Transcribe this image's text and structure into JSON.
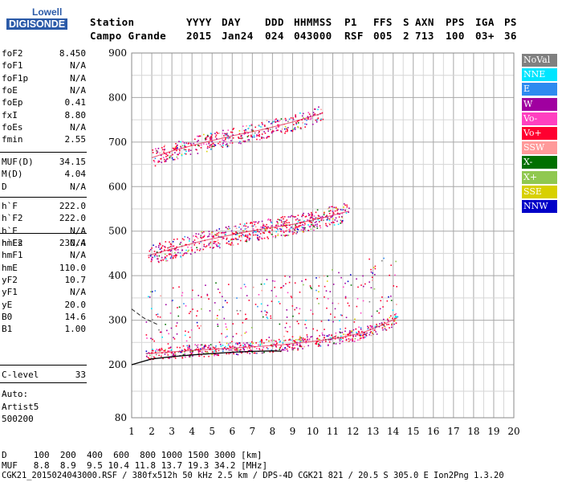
{
  "logo": {
    "top": "Lowell",
    "bottom": "DIGISONDE"
  },
  "header": {
    "row1": [
      "Station",
      "YYYY",
      "DAY",
      "DDD",
      "HHMMSS",
      "P1",
      "FFS",
      "S",
      "AXN",
      "PPS",
      "IGA",
      "PS"
    ],
    "row2": [
      "Campo Grande",
      "2015",
      "Jan24",
      "024",
      "043000",
      "RSF",
      "005",
      "2",
      "713",
      "100",
      "03+",
      "36"
    ]
  },
  "params": {
    "g1": [
      {
        "k": "foF2",
        "v": "8.450"
      },
      {
        "k": "foF1",
        "v": "N/A"
      },
      {
        "k": "foF1p",
        "v": "N/A"
      },
      {
        "k": "foE",
        "v": "N/A"
      },
      {
        "k": "foEp",
        "v": "0.41"
      },
      {
        "k": "fxI",
        "v": "8.80"
      },
      {
        "k": "foEs",
        "v": "N/A"
      },
      {
        "k": "fmin",
        "v": "2.55"
      }
    ],
    "g2": [
      {
        "k": "MUF(D)",
        "v": "34.15"
      },
      {
        "k": "M(D)",
        "v": "4.04"
      },
      {
        "k": "D",
        "v": "N/A"
      }
    ],
    "g3": [
      {
        "k": "h`F",
        "v": "222.0"
      },
      {
        "k": "h`F2",
        "v": "222.0"
      },
      {
        "k": "h`E",
        "v": "N/A"
      },
      {
        "k": "h`Es",
        "v": "N/A"
      }
    ],
    "g4": [
      {
        "k": "hmF2",
        "v": "230.4"
      },
      {
        "k": "hmF1",
        "v": "N/A"
      },
      {
        "k": "hmE",
        "v": "110.0"
      },
      {
        "k": "yF2",
        "v": "10.7"
      },
      {
        "k": "yF1",
        "v": "N/A"
      },
      {
        "k": "yE",
        "v": "20.0"
      },
      {
        "k": "B0",
        "v": "14.6"
      },
      {
        "k": "B1",
        "v": "1.00"
      }
    ],
    "g5": [
      {
        "k": "C-level",
        "v": "33"
      }
    ],
    "auto": [
      "Auto:",
      "Artist5",
      "500200"
    ]
  },
  "legend": [
    {
      "label": "NoVal",
      "color": "#808080"
    },
    {
      "label": "NNE",
      "color": "#00e5ff"
    },
    {
      "label": "E",
      "color": "#2e8bf0"
    },
    {
      "label": "W",
      "color": "#a000a0"
    },
    {
      "label": "Vo-",
      "color": "#ff40c0"
    },
    {
      "label": "Vo+",
      "color": "#ff0030"
    },
    {
      "label": "SSW",
      "color": "#ff9a9a"
    },
    {
      "label": "X-",
      "color": "#007000"
    },
    {
      "label": "X+",
      "color": "#90c850"
    },
    {
      "label": "SSE",
      "color": "#d8d000"
    },
    {
      "label": "NNW",
      "color": "#0000c8"
    }
  ],
  "footer": {
    "row1": "D     100  200  400  600  800 1000 1500 3000 [km]",
    "row2": "MUF   8.8  8.9  9.5 10.4 11.8 13.7 19.3 34.2 [MHz]",
    "row3": "CGK21_2015024043000.RSF / 380fx512h 50 kHz 2.5 km / DPS-4D CGK21 821 / 20.5 S 305.0 E Ion2Png 1.3.20"
  },
  "chart_data": {
    "type": "scatter",
    "title": "",
    "xlabel": "",
    "ylabel": "",
    "xlim": [
      1,
      20
    ],
    "ylim": [
      80,
      900
    ],
    "x_ticks": [
      "1",
      "2",
      "3",
      "4",
      "5",
      "6",
      "7",
      "8",
      "9",
      "10",
      "11",
      "12",
      "13",
      "14",
      "15",
      "16",
      "17",
      "18",
      "19",
      "20"
    ],
    "y_ticks": [
      "80",
      "200",
      "300",
      "400",
      "500",
      "600",
      "700",
      "800",
      "900"
    ],
    "grid": true,
    "legend_position": "right",
    "traces": [
      {
        "name": "1st hop O-trace",
        "x": [
          1.7,
          2.5,
          4,
          5.5,
          7,
          8.5,
          9.5,
          10.5,
          11.5,
          12.5,
          13.5,
          14.2
        ],
        "y": [
          225,
          227,
          232,
          236,
          240,
          245,
          250,
          255,
          262,
          272,
          290,
          305
        ]
      },
      {
        "name": "2nd hop trace",
        "x": [
          1.8,
          3,
          4.5,
          6,
          7.5,
          9,
          10.5,
          11.8
        ],
        "y": [
          445,
          460,
          478,
          492,
          505,
          515,
          530,
          545
        ]
      },
      {
        "name": "3rd hop trace",
        "x": [
          2,
          3,
          4.5,
          6,
          7.5,
          9,
          10.5
        ],
        "y": [
          665,
          680,
          698,
          714,
          728,
          745,
          765
        ]
      }
    ],
    "profile_curve": {
      "x": [
        1,
        2,
        3,
        4,
        5,
        6,
        7,
        8,
        8.45
      ],
      "y": [
        200,
        213,
        218,
        222,
        225,
        228,
        230,
        231,
        230.4
      ]
    }
  }
}
